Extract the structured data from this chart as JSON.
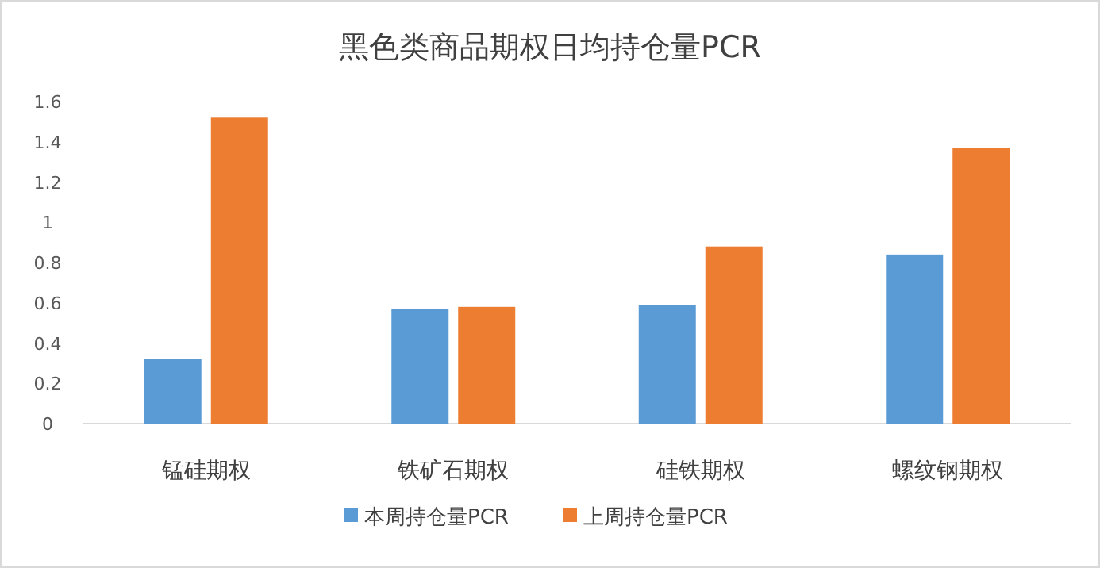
{
  "chart_data": {
    "type": "bar",
    "title": "黑色类商品期权日均持仓量PCR",
    "categories": [
      "锰硅期权",
      "铁矿石期权",
      "硅铁期权",
      "螺纹钢期权"
    ],
    "series": [
      {
        "name": "本周持仓量PCR",
        "color": "#5b9bd5",
        "values": [
          0.32,
          0.57,
          0.59,
          0.84
        ]
      },
      {
        "name": "上周持仓量PCR",
        "color": "#ed7d31",
        "values": [
          1.52,
          0.58,
          0.88,
          1.37
        ]
      }
    ],
    "ylim": [
      0,
      1.6
    ],
    "yticks": [
      0,
      {
        "value": 0.2,
        "label": "0.2"
      },
      {
        "value": 0.4,
        "label": "0.4"
      },
      {
        "value": 0.6,
        "label": "0.6"
      },
      {
        "value": 0.8,
        "label": "0.8"
      },
      1,
      {
        "value": 1.2,
        "label": "1.2"
      },
      {
        "value": 1.4,
        "label": "1.4"
      },
      {
        "value": 1.6,
        "label": "1.6"
      }
    ],
    "grid": false,
    "legend": "bottom"
  }
}
